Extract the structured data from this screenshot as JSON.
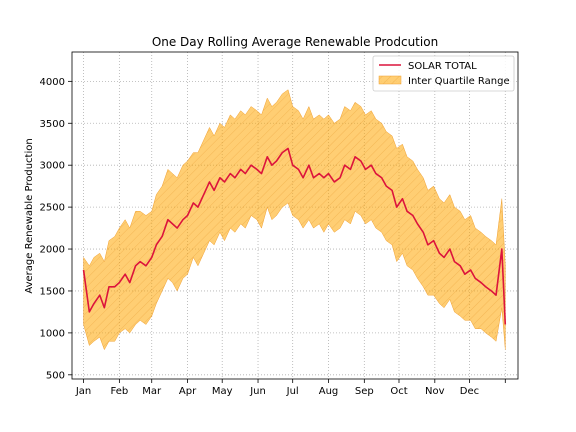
{
  "chart_data": {
    "type": "line",
    "title": "One Day Rolling Average Renewable Prodcution",
    "xlabel": "",
    "ylabel": "Average Renewable Production",
    "x_tick_labels": [
      "Jan",
      "Feb",
      "Mar",
      "Apr",
      "May",
      "Jun",
      "Jul",
      "Aug",
      "Sep",
      "Oct",
      "Nov",
      "Dec",
      ""
    ],
    "x_tick_days": [
      1,
      32,
      60,
      91,
      121,
      152,
      182,
      213,
      244,
      274,
      305,
      335,
      366
    ],
    "xlim": [
      -9,
      377
    ],
    "yticks": [
      500,
      1000,
      1500,
      2000,
      2500,
      3000,
      3500,
      4000
    ],
    "ylim": [
      450,
      4350
    ],
    "grid": true,
    "legend_position": "top-right",
    "series": [
      {
        "name": "SOLAR TOTAL",
        "kind": "line",
        "color": "#dc143c",
        "x": [
          1,
          6,
          10,
          15,
          19,
          23,
          28,
          32,
          37,
          41,
          46,
          50,
          55,
          60,
          64,
          69,
          74,
          78,
          82,
          87,
          91,
          96,
          100,
          105,
          110,
          114,
          119,
          123,
          128,
          132,
          137,
          141,
          146,
          151,
          155,
          160,
          164,
          168,
          173,
          178,
          182,
          187,
          191,
          196,
          200,
          205,
          209,
          213,
          218,
          223,
          227,
          232,
          236,
          241,
          245,
          250,
          254,
          259,
          263,
          268,
          272,
          277,
          281,
          286,
          290,
          295,
          299,
          304,
          309,
          313,
          318,
          322,
          327,
          331,
          336,
          340,
          345,
          349,
          354,
          358,
          363,
          366
        ],
        "y": [
          1750,
          1250,
          1350,
          1450,
          1300,
          1550,
          1550,
          1600,
          1700,
          1600,
          1800,
          1850,
          1800,
          1900,
          2050,
          2150,
          2350,
          2300,
          2250,
          2350,
          2400,
          2550,
          2500,
          2650,
          2800,
          2700,
          2850,
          2800,
          2900,
          2850,
          2950,
          2900,
          3000,
          2950,
          2900,
          3100,
          3000,
          3050,
          3150,
          3200,
          3000,
          2950,
          2850,
          3000,
          2850,
          2900,
          2850,
          2900,
          2800,
          2850,
          3000,
          2950,
          3100,
          3050,
          2950,
          3000,
          2900,
          2850,
          2750,
          2700,
          2500,
          2600,
          2450,
          2400,
          2300,
          2200,
          2050,
          2100,
          1950,
          1900,
          2000,
          1850,
          1800,
          1700,
          1750,
          1650,
          1600,
          1550,
          1500,
          1450,
          2000,
          1100
        ]
      },
      {
        "name": "Inter Quartile Range",
        "kind": "band",
        "color": "#ffa500",
        "x": [
          1,
          6,
          10,
          15,
          19,
          23,
          28,
          32,
          37,
          41,
          46,
          50,
          55,
          60,
          64,
          69,
          74,
          78,
          82,
          87,
          91,
          96,
          100,
          105,
          110,
          114,
          119,
          123,
          128,
          132,
          137,
          141,
          146,
          151,
          155,
          160,
          164,
          168,
          173,
          178,
          182,
          187,
          191,
          196,
          200,
          205,
          209,
          213,
          218,
          223,
          227,
          232,
          236,
          241,
          245,
          250,
          254,
          259,
          263,
          268,
          272,
          277,
          281,
          286,
          290,
          295,
          299,
          304,
          309,
          313,
          318,
          322,
          327,
          331,
          336,
          340,
          345,
          349,
          354,
          358,
          363,
          366
        ],
        "lower": [
          1100,
          850,
          900,
          950,
          800,
          900,
          900,
          1000,
          1050,
          1000,
          1100,
          1150,
          1100,
          1200,
          1350,
          1500,
          1650,
          1600,
          1500,
          1650,
          1700,
          1900,
          1800,
          1950,
          2100,
          2050,
          2200,
          2100,
          2250,
          2200,
          2300,
          2250,
          2400,
          2350,
          2250,
          2500,
          2350,
          2400,
          2500,
          2550,
          2400,
          2350,
          2250,
          2350,
          2250,
          2300,
          2200,
          2300,
          2200,
          2250,
          2350,
          2300,
          2450,
          2400,
          2300,
          2350,
          2250,
          2200,
          2100,
          2050,
          1850,
          1950,
          1800,
          1750,
          1650,
          1550,
          1450,
          1450,
          1350,
          1300,
          1400,
          1250,
          1200,
          1150,
          1150,
          1050,
          1050,
          1000,
          950,
          900,
          1300,
          800
        ],
        "upper": [
          1900,
          1800,
          1900,
          1950,
          1850,
          2100,
          2150,
          2250,
          2350,
          2250,
          2450,
          2450,
          2400,
          2450,
          2650,
          2750,
          2950,
          2900,
          2850,
          3000,
          3050,
          3150,
          3150,
          3300,
          3450,
          3350,
          3500,
          3450,
          3600,
          3550,
          3650,
          3600,
          3700,
          3650,
          3600,
          3800,
          3700,
          3750,
          3850,
          3900,
          3700,
          3650,
          3550,
          3700,
          3550,
          3600,
          3550,
          3600,
          3500,
          3550,
          3700,
          3650,
          3750,
          3700,
          3600,
          3650,
          3550,
          3500,
          3400,
          3350,
          3200,
          3250,
          3100,
          3050,
          2950,
          2850,
          2700,
          2750,
          2600,
          2550,
          2650,
          2500,
          2450,
          2350,
          2400,
          2250,
          2200,
          2150,
          2100,
          2050,
          2600,
          1800
        ]
      }
    ]
  }
}
